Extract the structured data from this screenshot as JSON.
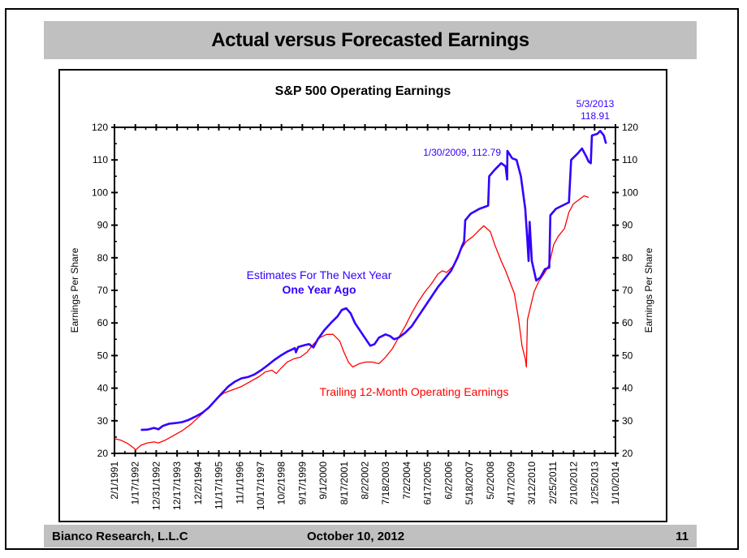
{
  "slide": {
    "title": "Actual versus Forecasted Earnings",
    "footer": {
      "company": "Bianco Research, L.L.C",
      "date": "October 10, 2012",
      "page_number": "11"
    }
  },
  "colors": {
    "estimates": "#3300ff",
    "trailing": "#ff0000",
    "band": "#c0c0c0"
  },
  "chart_data": {
    "type": "line",
    "title": "S&P 500 Operating Earnings",
    "xlabel": "",
    "ylabel": "Earnings Per Share",
    "ylabel_right": "Earnings Per Share",
    "ylim": [
      20,
      120
    ],
    "y_ticks": [
      20,
      30,
      40,
      50,
      60,
      70,
      80,
      90,
      100,
      110,
      120
    ],
    "x_range": [
      1991.09,
      2014.03
    ],
    "x_tick_labels": [
      "2/1/1991",
      "1/17/1992",
      "12/31/1992",
      "12/17/1993",
      "12/2/1994",
      "11/17/1995",
      "11/1/1996",
      "10/17/1997",
      "10/2/1998",
      "9/17/1999",
      "9/1/2000",
      "8/17/2001",
      "8/2/2002",
      "7/18/2003",
      "7/2/2004",
      "6/17/2005",
      "6/2/2006",
      "5/18/2007",
      "5/2/2008",
      "4/17/2009",
      "3/12/2010",
      "2/25/2011",
      "2/10/2012",
      "1/25/2013",
      "1/10/2014"
    ],
    "grid": false,
    "legend": "inline-labels",
    "series": [
      {
        "name": "Estimates For The Next Year One Year Ago",
        "label_line1": "Estimates For The Next Year",
        "label_line2": "One Year Ago",
        "color": "#3300ff",
        "points": [
          [
            1992.3,
            27.2
          ],
          [
            1992.6,
            27.3
          ],
          [
            1992.9,
            27.8
          ],
          [
            1993.1,
            27.4
          ],
          [
            1993.3,
            28.4
          ],
          [
            1993.6,
            29.1
          ],
          [
            1993.9,
            29.3
          ],
          [
            1994.2,
            29.6
          ],
          [
            1994.5,
            30.3
          ],
          [
            1994.8,
            31.3
          ],
          [
            1995.1,
            32.4
          ],
          [
            1995.4,
            34.0
          ],
          [
            1995.7,
            36.2
          ],
          [
            1996.0,
            38.4
          ],
          [
            1996.3,
            40.5
          ],
          [
            1996.6,
            42.0
          ],
          [
            1996.9,
            43.0
          ],
          [
            1997.2,
            43.4
          ],
          [
            1997.5,
            44.2
          ],
          [
            1997.8,
            45.5
          ],
          [
            1998.1,
            47.0
          ],
          [
            1998.4,
            48.6
          ],
          [
            1998.7,
            50.0
          ],
          [
            1999.0,
            51.2
          ],
          [
            1999.2,
            51.8
          ],
          [
            1999.35,
            52.3
          ],
          [
            1999.4,
            51.0
          ],
          [
            1999.5,
            52.6
          ],
          [
            1999.8,
            53.2
          ],
          [
            2000.0,
            53.5
          ],
          [
            2000.2,
            52.5
          ],
          [
            2000.4,
            55.0
          ],
          [
            2000.7,
            57.8
          ],
          [
            2001.0,
            60.0
          ],
          [
            2001.3,
            62.0
          ],
          [
            2001.5,
            64.0
          ],
          [
            2001.7,
            64.5
          ],
          [
            2001.9,
            63.0
          ],
          [
            2002.1,
            60.0
          ],
          [
            2002.4,
            57.0
          ],
          [
            2002.6,
            55.0
          ],
          [
            2002.8,
            53.0
          ],
          [
            2003.0,
            53.5
          ],
          [
            2003.2,
            55.5
          ],
          [
            2003.5,
            56.5
          ],
          [
            2003.7,
            56.0
          ],
          [
            2003.9,
            55.0
          ],
          [
            2004.1,
            55.5
          ],
          [
            2004.4,
            57.0
          ],
          [
            2004.7,
            59.0
          ],
          [
            2005.0,
            62.0
          ],
          [
            2005.3,
            65.0
          ],
          [
            2005.6,
            68.0
          ],
          [
            2005.9,
            71.0
          ],
          [
            2006.2,
            73.5
          ],
          [
            2006.5,
            76.0
          ],
          [
            2006.8,
            80.0
          ],
          [
            2007.0,
            83.5
          ],
          [
            2007.1,
            85.0
          ],
          [
            2007.15,
            91.5
          ],
          [
            2007.4,
            93.5
          ],
          [
            2007.8,
            95.0
          ],
          [
            2008.2,
            96.0
          ],
          [
            2008.25,
            105.0
          ],
          [
            2008.5,
            107.0
          ],
          [
            2008.8,
            109.0
          ],
          [
            2009.0,
            108.0
          ],
          [
            2009.07,
            104.0
          ],
          [
            2009.08,
            112.79
          ],
          [
            2009.3,
            110.5
          ],
          [
            2009.5,
            110.0
          ],
          [
            2009.7,
            105.0
          ],
          [
            2009.9,
            95.0
          ],
          [
            2010.0,
            85.0
          ],
          [
            2010.05,
            79.0
          ],
          [
            2010.1,
            91.0
          ],
          [
            2010.2,
            79.0
          ],
          [
            2010.4,
            73.0
          ],
          [
            2010.6,
            74.0
          ],
          [
            2010.8,
            76.5
          ],
          [
            2011.0,
            77.0
          ],
          [
            2011.05,
            93.0
          ],
          [
            2011.3,
            95.0
          ],
          [
            2011.6,
            96.0
          ],
          [
            2011.9,
            97.0
          ],
          [
            2012.0,
            110.0
          ],
          [
            2012.3,
            112.0
          ],
          [
            2012.5,
            113.5
          ],
          [
            2012.7,
            111.0
          ],
          [
            2012.8,
            109.5
          ],
          [
            2012.9,
            109.0
          ],
          [
            2012.95,
            117.5
          ],
          [
            2013.2,
            118.0
          ],
          [
            2013.33,
            118.91
          ],
          [
            2013.5,
            117.5
          ],
          [
            2013.6,
            115.0
          ]
        ]
      },
      {
        "name": "Trailing 12-Month Operating Earnings",
        "label_line1": "Trailing 12-Month Operating Earnings",
        "color": "#ff0000",
        "points": [
          [
            1991.09,
            24.5
          ],
          [
            1991.4,
            24.0
          ],
          [
            1991.7,
            23.0
          ],
          [
            1992.0,
            21.5
          ],
          [
            1992.05,
            21.0
          ],
          [
            1992.3,
            22.5
          ],
          [
            1992.6,
            23.2
          ],
          [
            1992.9,
            23.5
          ],
          [
            1993.1,
            23.2
          ],
          [
            1993.4,
            24.0
          ],
          [
            1993.8,
            25.5
          ],
          [
            1994.2,
            27.0
          ],
          [
            1994.6,
            29.0
          ],
          [
            1995.0,
            31.5
          ],
          [
            1995.4,
            34.0
          ],
          [
            1995.8,
            37.0
          ],
          [
            1996.1,
            38.5
          ],
          [
            1996.5,
            39.5
          ],
          [
            1996.9,
            40.5
          ],
          [
            1997.3,
            42.0
          ],
          [
            1997.7,
            43.5
          ],
          [
            1998.0,
            45.0
          ],
          [
            1998.3,
            45.5
          ],
          [
            1998.5,
            44.5
          ],
          [
            1998.7,
            46.0
          ],
          [
            1999.0,
            48.0
          ],
          [
            1999.3,
            49.0
          ],
          [
            1999.6,
            49.5
          ],
          [
            1999.9,
            51.0
          ],
          [
            2000.2,
            53.5
          ],
          [
            2000.5,
            55.5
          ],
          [
            2000.8,
            56.5
          ],
          [
            2001.1,
            56.5
          ],
          [
            2001.4,
            54.5
          ],
          [
            2001.6,
            51.0
          ],
          [
            2001.8,
            48.0
          ],
          [
            2002.0,
            46.5
          ],
          [
            2002.3,
            47.5
          ],
          [
            2002.6,
            48.0
          ],
          [
            2002.9,
            48.0
          ],
          [
            2003.2,
            47.5
          ],
          [
            2003.5,
            49.5
          ],
          [
            2003.8,
            52.0
          ],
          [
            2004.1,
            55.5
          ],
          [
            2004.4,
            59.0
          ],
          [
            2004.7,
            63.0
          ],
          [
            2005.0,
            66.5
          ],
          [
            2005.3,
            69.5
          ],
          [
            2005.6,
            72.0
          ],
          [
            2005.9,
            75.0
          ],
          [
            2006.1,
            76.0
          ],
          [
            2006.3,
            75.5
          ],
          [
            2006.6,
            77.5
          ],
          [
            2006.9,
            82.0
          ],
          [
            2007.2,
            85.0
          ],
          [
            2007.5,
            86.5
          ],
          [
            2007.8,
            88.5
          ],
          [
            2008.0,
            89.8
          ],
          [
            2008.3,
            88.0
          ],
          [
            2008.5,
            84.0
          ],
          [
            2008.8,
            79.0
          ],
          [
            2009.0,
            76.0
          ],
          [
            2009.2,
            72.5
          ],
          [
            2009.4,
            69.0
          ],
          [
            2009.6,
            61.0
          ],
          [
            2009.75,
            53.0
          ],
          [
            2009.9,
            49.0
          ],
          [
            2009.95,
            46.5
          ],
          [
            2010.0,
            61.0
          ],
          [
            2010.3,
            69.5
          ],
          [
            2010.5,
            72.5
          ],
          [
            2010.8,
            75.5
          ],
          [
            2011.0,
            78.0
          ],
          [
            2011.2,
            84.0
          ],
          [
            2011.4,
            86.5
          ],
          [
            2011.7,
            89.0
          ],
          [
            2011.9,
            94.0
          ],
          [
            2012.1,
            96.5
          ],
          [
            2012.4,
            98.0
          ],
          [
            2012.6,
            99.0
          ],
          [
            2012.8,
            98.5
          ]
        ]
      }
    ],
    "annotations": [
      {
        "text": "1/30/2009, 112.79",
        "series": "estimates",
        "x": 2009.08,
        "y": 112.79
      },
      {
        "text_line1": "5/3/2013",
        "text_line2": "118.91",
        "series": "estimates",
        "x": 2013.33,
        "y": 118.91
      }
    ]
  }
}
